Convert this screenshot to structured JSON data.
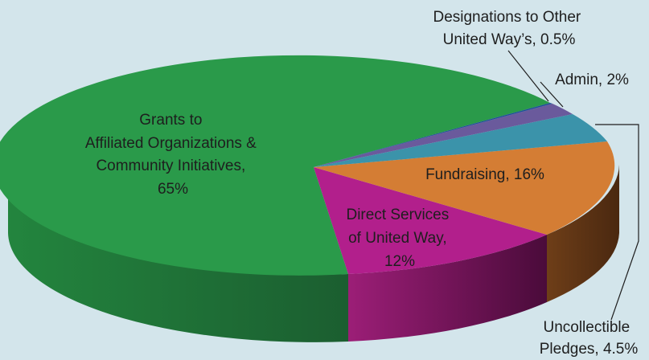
{
  "chart_data": {
    "type": "pie",
    "title": "",
    "slices": [
      {
        "key": "grants",
        "label_lines": [
          "Grants to",
          "Affiliated Organizations &",
          "Community Initiatives,",
          "65%"
        ],
        "value": 65,
        "color": "#2a9a4a"
      },
      {
        "key": "direct",
        "label_lines": [
          "Direct Services",
          "of United Way,",
          "12%"
        ],
        "value": 12,
        "color": "#b21f8c"
      },
      {
        "key": "fundraising",
        "label_lines": [
          "Fundraising, 16%"
        ],
        "value": 16,
        "color": "#d47d34"
      },
      {
        "key": "uncollectible",
        "label_lines": [
          "Uncollectible",
          "Pledges, 4.5%"
        ],
        "value": 4.5,
        "color": "#3b93aa"
      },
      {
        "key": "admin",
        "label_lines": [
          "Admin, 2%"
        ],
        "value": 2,
        "color": "#6a5a9c"
      },
      {
        "key": "designations",
        "label_lines": [
          "Designations to Other",
          "United Way’s, 0.5%"
        ],
        "value": 0.5,
        "color": "#1f4f95"
      }
    ]
  }
}
